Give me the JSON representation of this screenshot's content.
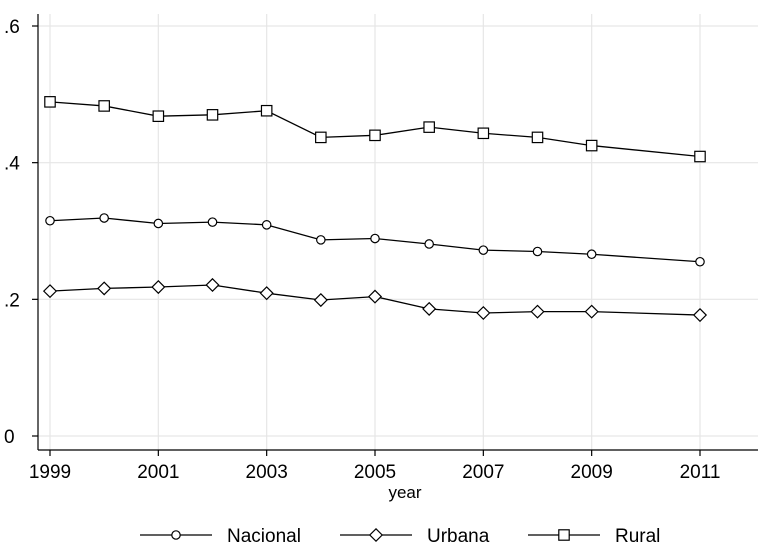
{
  "chart_data": {
    "type": "line",
    "title": "",
    "xlabel": "year",
    "ylabel": "",
    "xlim": [
      1999,
      2012
    ],
    "ylim": [
      0,
      0.6
    ],
    "x_ticks": [
      1999,
      2001,
      2003,
      2005,
      2007,
      2009,
      2011
    ],
    "x_tick_labels": [
      "1999",
      "2001",
      "2003",
      "2005",
      "2007",
      "2009",
      "2011"
    ],
    "y_ticks": [
      0,
      0.2,
      0.4,
      0.6
    ],
    "y_tick_labels": [
      "0",
      ".2",
      ".4",
      ".6"
    ],
    "grid": true,
    "legend_position": "bottom",
    "x": [
      1999,
      2000,
      2001,
      2002,
      2003,
      2004,
      2005,
      2006,
      2007,
      2008,
      2009,
      2011
    ],
    "series": [
      {
        "name": "Nacional",
        "marker": "circle",
        "values": [
          0.315,
          0.319,
          0.311,
          0.313,
          0.309,
          0.287,
          0.289,
          0.281,
          0.272,
          0.27,
          0.266,
          0.255
        ]
      },
      {
        "name": "Urbana",
        "marker": "diamond",
        "values": [
          0.212,
          0.216,
          0.218,
          0.221,
          0.209,
          0.199,
          0.204,
          0.186,
          0.18,
          0.182,
          0.182,
          0.177
        ]
      },
      {
        "name": "Rural",
        "marker": "square",
        "values": [
          0.489,
          0.483,
          0.468,
          0.47,
          0.476,
          0.437,
          0.44,
          0.452,
          0.443,
          0.437,
          0.425,
          0.409
        ]
      }
    ],
    "colors": {
      "line": "#000000",
      "grid": "#e6e6e6",
      "axis": "#000000",
      "marker_fill": "#ffffff"
    }
  }
}
